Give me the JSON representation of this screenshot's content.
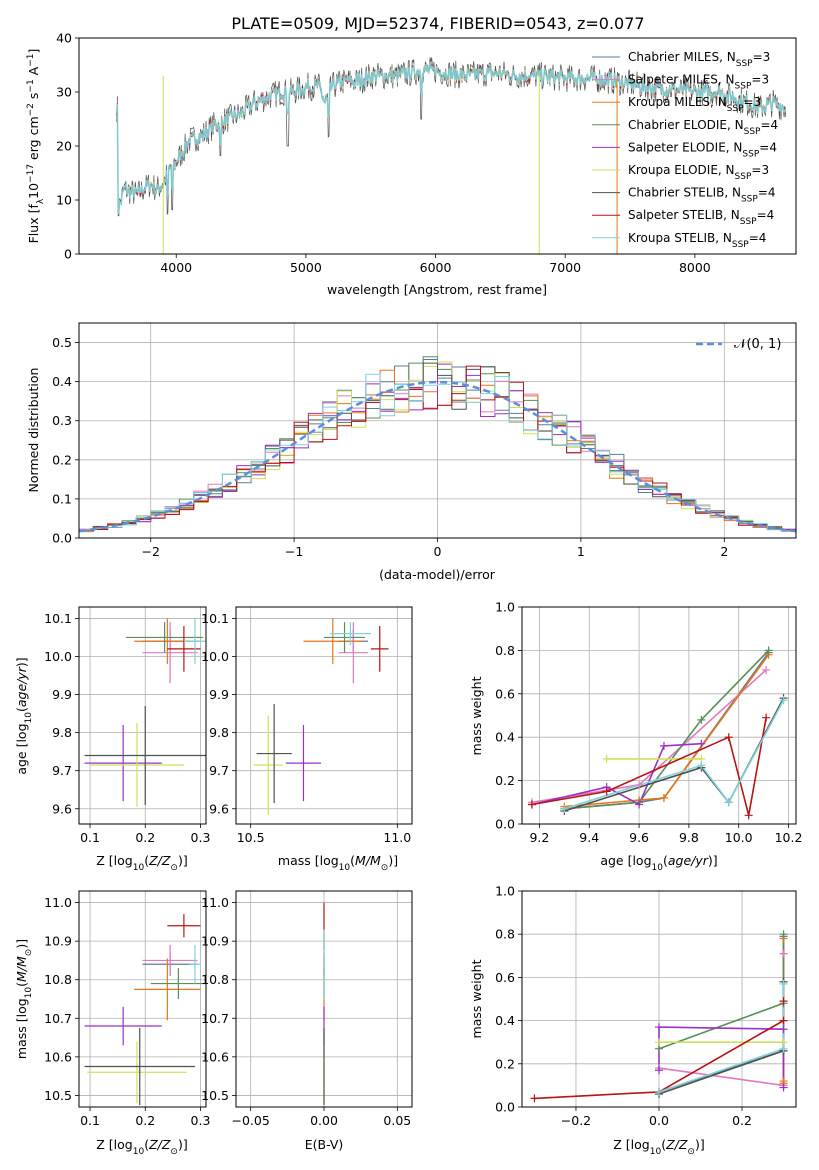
{
  "figure_title": "PLATE=0509, MJD=52374, FIBERID=0543, z=0.077",
  "model_names": [
    "Chabrier MILES",
    "Salpeter MILES",
    "Kroupa MILES",
    "Chabrier ELODIE",
    "Salpeter ELODIE",
    "Kroupa ELODIE",
    "Chabrier STELIB",
    "Salpeter STELIB",
    "Kroupa STELIB"
  ],
  "model_colors": [
    "#5a7d9a",
    "#e377c2",
    "#e8751a",
    "#5a8f5a",
    "#9b30c8",
    "#cde05a",
    "#505050",
    "#b81414",
    "#7fd3d8"
  ],
  "chart_data": [
    {
      "id": "spectrum",
      "type": "line",
      "title": "PLATE=0509, MJD=52374, FIBERID=0543, z=0.077",
      "xlabel": "wavelength [Angstrom, rest frame]",
      "ylabel_main": "Flux [f",
      "ylabel_sub": "λ",
      "ylabel_rest": "10",
      "ylabel_exp": "−17",
      "ylabel_unit": " erg cm",
      "ylabel_exp2": "−2",
      "ylabel_s": " s",
      "ylabel_exp3": "−1",
      "ylabel_a": " A",
      "ylabel_exp4": "−1",
      "ylabel_end": "]",
      "xlim": [
        3250,
        8780
      ],
      "ylim": [
        0,
        40
      ],
      "xticks": [
        4000,
        5000,
        6000,
        7000,
        8000
      ],
      "yticks": [
        0,
        10,
        20,
        30,
        40
      ],
      "legend_position": "top-right",
      "legend": [
        {
          "model": "Chabrier MILES",
          "nssp": "3"
        },
        {
          "model": "Salpeter MILES",
          "nssp": "3"
        },
        {
          "model": "Kroupa MILES",
          "nssp": "3"
        },
        {
          "model": "Chabrier ELODIE",
          "nssp": "4"
        },
        {
          "model": "Salpeter ELODIE",
          "nssp": "4"
        },
        {
          "model": "Kroupa ELODIE",
          "nssp": "3"
        },
        {
          "model": "Chabrier STELIB",
          "nssp": "4"
        },
        {
          "model": "Salpeter STELIB",
          "nssp": "4"
        },
        {
          "model": "Kroupa STELIB",
          "nssp": "4"
        }
      ],
      "legend_prefix": "N",
      "legend_sub": "SSP",
      "continuum": [
        [
          3550,
          8
        ],
        [
          3600,
          12
        ],
        [
          3700,
          11
        ],
        [
          3800,
          13
        ],
        [
          3850,
          12
        ],
        [
          3900,
          13
        ],
        [
          3950,
          16
        ],
        [
          4000,
          17
        ],
        [
          4100,
          21
        ],
        [
          4200,
          22
        ],
        [
          4300,
          24
        ],
        [
          4400,
          25
        ],
        [
          4500,
          26
        ],
        [
          4600,
          28
        ],
        [
          4700,
          29
        ],
        [
          4800,
          30
        ],
        [
          4900,
          30
        ],
        [
          5000,
          31
        ],
        [
          5100,
          31
        ],
        [
          5150,
          28
        ],
        [
          5200,
          31
        ],
        [
          5300,
          32
        ],
        [
          5400,
          32
        ],
        [
          5500,
          33
        ],
        [
          5600,
          33
        ],
        [
          5700,
          33
        ],
        [
          5800,
          33.5
        ],
        [
          5900,
          34
        ],
        [
          6000,
          34
        ],
        [
          6200,
          33
        ],
        [
          6400,
          33.5
        ],
        [
          6500,
          33.5
        ],
        [
          6600,
          33
        ],
        [
          6800,
          33
        ],
        [
          7000,
          32.5
        ],
        [
          7200,
          32.5
        ],
        [
          7400,
          32
        ],
        [
          7600,
          31
        ],
        [
          7800,
          30.5
        ],
        [
          8000,
          30
        ],
        [
          8200,
          30
        ],
        [
          8400,
          28
        ],
        [
          8500,
          27
        ],
        [
          8600,
          28
        ],
        [
          8700,
          27
        ]
      ]
    },
    {
      "id": "residual-histogram",
      "type": "histogram",
      "xlabel": "(data-model)/error",
      "ylabel": "Normed distribution",
      "xlim": [
        -2.5,
        2.5
      ],
      "ylim": [
        0,
        0.55
      ],
      "xticks": [
        -2,
        -1,
        0,
        1,
        2
      ],
      "yticks": [
        0.0,
        0.1,
        0.2,
        0.3,
        0.4,
        0.5
      ],
      "legend_label": "𝒩(0, 1)",
      "legend_position": "top-right",
      "bin_width": 0.1,
      "bin_start": -2.5,
      "reference_curve": "normal(0,1)"
    },
    {
      "id": "age-vs-z",
      "type": "scatter",
      "xlabel_main": "Z [log",
      "xlabel_sub": "10",
      "xlabel_arg": "(Z/Z",
      "xlabel_sun": "⊙",
      "xlabel_end": ")]",
      "ylabel_main": "age  [log",
      "ylabel_sub": "10",
      "ylabel_arg": "(age/yr)]",
      "xlim": [
        0.08,
        0.31
      ],
      "ylim": [
        9.56,
        10.13
      ],
      "xticks": [
        0.1,
        0.2,
        0.3
      ],
      "yticks": [
        9.6,
        9.7,
        9.8,
        9.9,
        10.0,
        10.1
      ],
      "points": [
        {
          "model": 0,
          "x": 0.245,
          "y": 10.04,
          "xerr": 0.05,
          "yerr": 0.03
        },
        {
          "model": 1,
          "x": 0.245,
          "y": 10.01,
          "xerr": 0.05,
          "yerr": 0.08
        },
        {
          "model": 2,
          "x": 0.24,
          "y": 10.04,
          "xerr": 0.06,
          "yerr": 0.06
        },
        {
          "model": 3,
          "x": 0.235,
          "y": 10.05,
          "xerr": 0.07,
          "yerr": 0.04
        },
        {
          "model": 4,
          "x": 0.16,
          "y": 9.72,
          "xerr": 0.07,
          "yerr": 0.1
        },
        {
          "model": 5,
          "x": 0.185,
          "y": 9.715,
          "xerr": 0.085,
          "yerr": 0.11
        },
        {
          "model": 6,
          "x": 0.2,
          "y": 9.74,
          "xerr": 0.11,
          "yerr": 0.13
        },
        {
          "model": 7,
          "x": 0.27,
          "y": 10.02,
          "xerr": 0.03,
          "yerr": 0.06
        },
        {
          "model": 8,
          "x": 0.29,
          "y": 10.04,
          "xerr": 0.02,
          "yerr": 0.06
        }
      ]
    },
    {
      "id": "age-vs-mass",
      "type": "scatter",
      "xlabel_main": "mass [log",
      "xlabel_sub": "10",
      "xlabel_arg": "(M/M",
      "xlabel_sun": "⊙",
      "xlabel_end": ")]",
      "xlim": [
        10.45,
        11.05
      ],
      "ylim": [
        9.56,
        10.13
      ],
      "xticks": [
        10.5,
        11.0
      ],
      "yticks": [
        9.6,
        9.7,
        9.8,
        9.9,
        10.0,
        10.1
      ],
      "points": [
        {
          "model": 0,
          "x": 10.85,
          "y": 10.04,
          "xerr": 0.05,
          "yerr": 0.03
        },
        {
          "model": 1,
          "x": 10.85,
          "y": 10.01,
          "xerr": 0.05,
          "yerr": 0.08
        },
        {
          "model": 2,
          "x": 10.78,
          "y": 10.04,
          "xerr": 0.1,
          "yerr": 0.06
        },
        {
          "model": 3,
          "x": 10.82,
          "y": 10.05,
          "xerr": 0.07,
          "yerr": 0.04
        },
        {
          "model": 4,
          "x": 10.68,
          "y": 9.72,
          "xerr": 0.06,
          "yerr": 0.1
        },
        {
          "model": 5,
          "x": 10.56,
          "y": 9.715,
          "xerr": 0.05,
          "yerr": 0.13
        },
        {
          "model": 6,
          "x": 10.58,
          "y": 9.745,
          "xerr": 0.06,
          "yerr": 0.13
        },
        {
          "model": 7,
          "x": 10.94,
          "y": 10.02,
          "xerr": 0.03,
          "yerr": 0.06
        },
        {
          "model": 8,
          "x": 10.84,
          "y": 10.06,
          "xerr": 0.07,
          "yerr": 0.03
        }
      ]
    },
    {
      "id": "mass-weight-vs-age",
      "type": "line",
      "xlabel_main": "age  [log",
      "xlabel_sub": "10",
      "xlabel_arg": "(age/yr)]",
      "ylabel": "mass weight",
      "xlim": [
        9.13,
        10.23
      ],
      "ylim": [
        0,
        1
      ],
      "xticks": [
        9.2,
        9.4,
        9.6,
        9.8,
        10.0,
        10.2
      ],
      "yticks": [
        0.0,
        0.2,
        0.4,
        0.6,
        0.8,
        1.0
      ],
      "series": [
        {
          "model": 0,
          "x": [
            9.3,
            9.6,
            9.7,
            10.12
          ],
          "y": [
            0.07,
            0.1,
            0.12,
            0.79
          ]
        },
        {
          "model": 1,
          "x": [
            9.17,
            9.6,
            10.11
          ],
          "y": [
            0.1,
            0.18,
            0.71
          ]
        },
        {
          "model": 2,
          "x": [
            9.3,
            9.6,
            9.7,
            10.12
          ],
          "y": [
            0.08,
            0.11,
            0.12,
            0.78
          ]
        },
        {
          "model": 3,
          "x": [
            9.3,
            9.6,
            9.85,
            10.12
          ],
          "y": [
            0.07,
            0.1,
            0.48,
            0.8
          ]
        },
        {
          "model": 4,
          "x": [
            9.17,
            9.47,
            9.6,
            9.7,
            9.85
          ],
          "y": [
            0.09,
            0.17,
            0.09,
            0.36,
            0.37
          ]
        },
        {
          "model": 5,
          "x": [
            9.47,
            9.85
          ],
          "y": [
            0.3,
            0.3
          ]
        },
        {
          "model": 6,
          "x": [
            9.3,
            9.85,
            9.96,
            10.18
          ],
          "y": [
            0.06,
            0.26,
            0.1,
            0.58
          ]
        },
        {
          "model": 7,
          "x": [
            9.17,
            9.47,
            9.96,
            10.04,
            10.11
          ],
          "y": [
            0.09,
            0.15,
            0.4,
            0.04,
            0.49
          ]
        },
        {
          "model": 8,
          "x": [
            9.3,
            9.85,
            9.96,
            10.18
          ],
          "y": [
            0.07,
            0.27,
            0.1,
            0.57
          ]
        }
      ]
    },
    {
      "id": "mass-vs-z",
      "type": "scatter",
      "xlabel_main": "Z [log",
      "xlabel_sub": "10",
      "xlabel_arg": "(Z/Z",
      "xlabel_sun": "⊙",
      "xlabel_end": ")]",
      "ylabel_main": "mass [log",
      "ylabel_sub": "10",
      "ylabel_arg": "(M/M",
      "ylabel_sun": "⊙",
      "ylabel_end": ")]",
      "xlim": [
        0.08,
        0.31
      ],
      "ylim": [
        10.47,
        11.03
      ],
      "xticks": [
        0.1,
        0.2,
        0.3
      ],
      "yticks": [
        10.5,
        10.6,
        10.7,
        10.8,
        10.9,
        11.0
      ],
      "points": [
        {
          "model": 0,
          "x": 0.245,
          "y": 10.84,
          "xerr": 0.05,
          "yerr": 0.03
        },
        {
          "model": 1,
          "x": 0.245,
          "y": 10.85,
          "xerr": 0.05,
          "yerr": 0.04
        },
        {
          "model": 2,
          "x": 0.24,
          "y": 10.775,
          "xerr": 0.06,
          "yerr": 0.08
        },
        {
          "model": 3,
          "x": 0.26,
          "y": 10.79,
          "xerr": 0.05,
          "yerr": 0.04
        },
        {
          "model": 4,
          "x": 0.16,
          "y": 10.68,
          "xerr": 0.07,
          "yerr": 0.05
        },
        {
          "model": 5,
          "x": 0.185,
          "y": 10.56,
          "xerr": 0.09,
          "yerr": 0.08
        },
        {
          "model": 6,
          "x": 0.19,
          "y": 10.575,
          "xerr": 0.1,
          "yerr": 0.1
        },
        {
          "model": 7,
          "x": 0.27,
          "y": 10.94,
          "xerr": 0.03,
          "yerr": 0.03
        },
        {
          "model": 8,
          "x": 0.29,
          "y": 10.84,
          "xerr": 0.01,
          "yerr": 0.05
        }
      ]
    },
    {
      "id": "ebv",
      "type": "scatter",
      "xlabel": "E(B-V)",
      "xlim": [
        -0.06,
        0.06
      ],
      "ylim": [
        10.47,
        11.03
      ],
      "xticks": [
        -0.05,
        0.0,
        0.05
      ],
      "xtick_labels": [
        "−0.05",
        "0.00",
        "0.05"
      ],
      "yticks": [
        10.5,
        10.6,
        10.7,
        10.8,
        10.9,
        11.0
      ],
      "points": [
        {
          "model": 0,
          "x": 0,
          "y": 10.84,
          "xerr": 0,
          "yerr": 0.03
        },
        {
          "model": 1,
          "x": 0,
          "y": 10.85,
          "xerr": 0,
          "yerr": 0.04
        },
        {
          "model": 2,
          "x": 0,
          "y": 10.775,
          "xerr": 0,
          "yerr": 0.08
        },
        {
          "model": 3,
          "x": 0,
          "y": 10.79,
          "xerr": 0,
          "yerr": 0.04
        },
        {
          "model": 4,
          "x": 0,
          "y": 10.68,
          "xerr": 0,
          "yerr": 0.05
        },
        {
          "model": 5,
          "x": 0,
          "y": 10.56,
          "xerr": 0,
          "yerr": 0.08
        },
        {
          "model": 6,
          "x": 0,
          "y": 10.575,
          "xerr": 0,
          "yerr": 0.1
        },
        {
          "model": 7,
          "x": 0,
          "y": 10.94,
          "xerr": 0,
          "yerr": 0.06
        },
        {
          "model": 8,
          "x": 0,
          "y": 10.84,
          "xerr": 0,
          "yerr": 0.09
        }
      ]
    },
    {
      "id": "mass-weight-vs-z",
      "type": "line",
      "xlabel_main": "Z [log",
      "xlabel_sub": "10",
      "xlabel_arg": "(Z/Z",
      "xlabel_sun": "⊙",
      "xlabel_end": ")]",
      "ylabel": "mass weight",
      "xlim": [
        -0.33,
        0.33
      ],
      "ylim": [
        0,
        1
      ],
      "xticks": [
        -0.2,
        0.0,
        0.2
      ],
      "xtick_labels": [
        "−0.2",
        "0.0",
        "0.2"
      ],
      "yticks": [
        0.0,
        0.2,
        0.4,
        0.6,
        0.8,
        1.0
      ],
      "series": [
        {
          "model": 0,
          "x": [
            0.0,
            0.3,
            0.3,
            0.3
          ],
          "y": [
            0.07,
            0.26,
            0.1,
            0.79
          ]
        },
        {
          "model": 1,
          "x": [
            0.0,
            0.3,
            0.3
          ],
          "y": [
            0.18,
            0.1,
            0.71
          ]
        },
        {
          "model": 2,
          "x": [
            0.3,
            0.3,
            0.3
          ],
          "y": [
            0.11,
            0.12,
            0.78
          ]
        },
        {
          "model": 3,
          "x": [
            0.0,
            0.3,
            0.3
          ],
          "y": [
            0.27,
            0.48,
            0.8
          ]
        },
        {
          "model": 4,
          "x": [
            0.0,
            0.0,
            0.3,
            0.3
          ],
          "y": [
            0.17,
            0.37,
            0.36,
            0.09
          ]
        },
        {
          "model": 5,
          "x": [
            0.0,
            0.3
          ],
          "y": [
            0.3,
            0.3
          ]
        },
        {
          "model": 6,
          "x": [
            0.0,
            0.3,
            0.3
          ],
          "y": [
            0.06,
            0.26,
            0.58
          ]
        },
        {
          "model": 7,
          "x": [
            -0.3,
            0.0,
            0.3,
            0.3
          ],
          "y": [
            0.04,
            0.07,
            0.4,
            0.49
          ]
        },
        {
          "model": 8,
          "x": [
            0.0,
            0.3,
            0.3
          ],
          "y": [
            0.07,
            0.27,
            0.57
          ]
        }
      ]
    }
  ]
}
